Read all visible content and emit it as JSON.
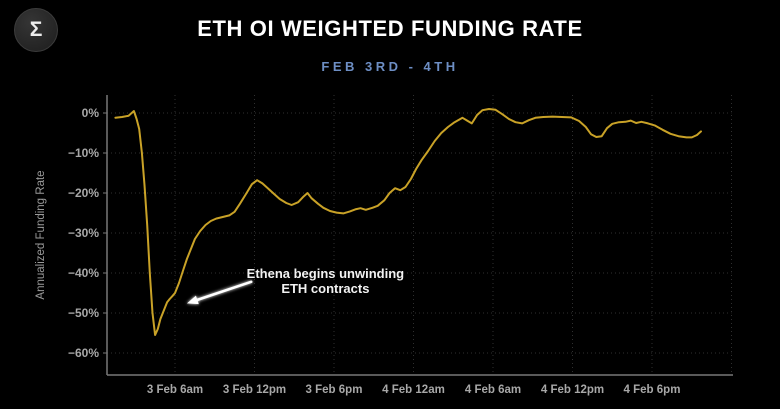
{
  "header": {
    "title": "ETH OI WEIGHTED FUNDING RATE",
    "subtitle": "FEB 3RD - 4TH",
    "logo_glyph": "Σ"
  },
  "colors": {
    "background": "#000000",
    "title_text": "#ffffff",
    "subtitle_text": "#6d8ec4",
    "line": "#c9a227",
    "grid": "#2f2f2f",
    "axis": "#787878",
    "tick_text": "#a8a8a8",
    "axis_title_text": "#9a9a9a",
    "annotation_text": "#f2f2f2",
    "arrow": "#ffffff"
  },
  "chart_data": {
    "type": "line",
    "title": "ETH OI WEIGHTED FUNDING RATE",
    "subtitle": "FEB 3RD - 4TH",
    "xlabel": "",
    "ylabel": "Annualized Funding Rate",
    "ylim": [
      -65,
      5
    ],
    "y_unit": "%",
    "grid": "dotted",
    "legend": "none",
    "y_ticks": [
      {
        "value": 0,
        "label": "0%"
      },
      {
        "value": -10,
        "label": "−10%"
      },
      {
        "value": -20,
        "label": "−20%"
      },
      {
        "value": -30,
        "label": "−30%"
      },
      {
        "value": -40,
        "label": "−40%"
      },
      {
        "value": -50,
        "label": "−50%"
      },
      {
        "value": -60,
        "label": "−60%"
      }
    ],
    "x_ticks": [
      {
        "hour": 6,
        "label": "3 Feb 6am"
      },
      {
        "hour": 12,
        "label": "3 Feb 12pm"
      },
      {
        "hour": 18,
        "label": "3 Feb 6pm"
      },
      {
        "hour": 24,
        "label": "4 Feb 12am"
      },
      {
        "hour": 30,
        "label": "4 Feb 6am"
      },
      {
        "hour": 36,
        "label": "4 Feb 12pm"
      },
      {
        "hour": 42,
        "label": "4 Feb 6pm"
      },
      {
        "hour": 48,
        "label": ""
      }
    ],
    "x_axis_note": "hours measured from 3 Feb 12am",
    "series": [
      {
        "name": "ETH OI weighted funding rate (annualized %)",
        "color": "#c9a227",
        "points": [
          [
            1.5,
            -1.2
          ],
          [
            2.0,
            -1.0
          ],
          [
            2.5,
            -0.7
          ],
          [
            2.9,
            0.5
          ],
          [
            3.1,
            -1.5
          ],
          [
            3.3,
            -4
          ],
          [
            3.5,
            -10
          ],
          [
            3.7,
            -18
          ],
          [
            3.9,
            -28
          ],
          [
            4.1,
            -40
          ],
          [
            4.3,
            -50
          ],
          [
            4.5,
            -55.5
          ],
          [
            4.7,
            -54
          ],
          [
            4.9,
            -51.5
          ],
          [
            5.2,
            -49
          ],
          [
            5.4,
            -47.3
          ],
          [
            5.6,
            -46.5
          ],
          [
            5.8,
            -45.8
          ],
          [
            6.0,
            -45
          ],
          [
            6.3,
            -42.5
          ],
          [
            6.6,
            -39.5
          ],
          [
            6.9,
            -36.5
          ],
          [
            7.2,
            -34
          ],
          [
            7.5,
            -31.5
          ],
          [
            7.9,
            -29.5
          ],
          [
            8.3,
            -28
          ],
          [
            8.7,
            -27
          ],
          [
            9.1,
            -26.4
          ],
          [
            9.6,
            -26
          ],
          [
            10.1,
            -25.6
          ],
          [
            10.5,
            -24.7
          ],
          [
            10.9,
            -22.7
          ],
          [
            11.4,
            -20
          ],
          [
            11.8,
            -17.8
          ],
          [
            12.2,
            -16.8
          ],
          [
            12.6,
            -17.6
          ],
          [
            13.0,
            -18.8
          ],
          [
            13.5,
            -20.3
          ],
          [
            13.9,
            -21.5
          ],
          [
            14.4,
            -22.5
          ],
          [
            14.8,
            -23
          ],
          [
            15.3,
            -22.3
          ],
          [
            15.7,
            -20.9
          ],
          [
            16.0,
            -20
          ],
          [
            16.3,
            -21.3
          ],
          [
            16.8,
            -22.7
          ],
          [
            17.2,
            -23.7
          ],
          [
            17.7,
            -24.5
          ],
          [
            18.2,
            -24.9
          ],
          [
            18.7,
            -25.1
          ],
          [
            19.2,
            -24.6
          ],
          [
            19.6,
            -24.1
          ],
          [
            20.0,
            -23.8
          ],
          [
            20.4,
            -24.2
          ],
          [
            20.9,
            -23.7
          ],
          [
            21.3,
            -23.2
          ],
          [
            21.8,
            -21.8
          ],
          [
            22.2,
            -20
          ],
          [
            22.6,
            -18.8
          ],
          [
            23.0,
            -19.3
          ],
          [
            23.4,
            -18.5
          ],
          [
            23.8,
            -16.5
          ],
          [
            24.2,
            -14
          ],
          [
            24.6,
            -11.8
          ],
          [
            25.1,
            -9.5
          ],
          [
            25.6,
            -7
          ],
          [
            26.1,
            -5
          ],
          [
            26.6,
            -3.5
          ],
          [
            27.1,
            -2.3
          ],
          [
            27.7,
            -1.2
          ],
          [
            28.1,
            -2
          ],
          [
            28.4,
            -2.6
          ],
          [
            28.8,
            -0.5
          ],
          [
            29.2,
            0.7
          ],
          [
            29.7,
            1.0
          ],
          [
            30.2,
            0.8
          ],
          [
            30.7,
            -0.3
          ],
          [
            31.2,
            -1.5
          ],
          [
            31.7,
            -2.3
          ],
          [
            32.2,
            -2.6
          ],
          [
            32.7,
            -1.8
          ],
          [
            33.2,
            -1.2
          ],
          [
            33.8,
            -1.0
          ],
          [
            34.5,
            -0.9
          ],
          [
            35.2,
            -1.0
          ],
          [
            35.9,
            -1.1
          ],
          [
            36.5,
            -2.0
          ],
          [
            37.0,
            -3.5
          ],
          [
            37.4,
            -5.3
          ],
          [
            37.8,
            -6.0
          ],
          [
            38.2,
            -5.8
          ],
          [
            38.6,
            -3.8
          ],
          [
            39.0,
            -2.7
          ],
          [
            39.5,
            -2.3
          ],
          [
            40.0,
            -2.2
          ],
          [
            40.4,
            -1.9
          ],
          [
            40.8,
            -2.5
          ],
          [
            41.2,
            -2.2
          ],
          [
            41.7,
            -2.6
          ],
          [
            42.2,
            -3.1
          ],
          [
            42.8,
            -4.2
          ],
          [
            43.4,
            -5.2
          ],
          [
            44.0,
            -5.8
          ],
          [
            44.6,
            -6.1
          ],
          [
            45.0,
            -6.1
          ],
          [
            45.4,
            -5.5
          ],
          [
            45.7,
            -4.6
          ]
        ]
      }
    ],
    "annotation": {
      "lines": [
        "Ethena begins unwinding",
        "ETH contracts"
      ],
      "text_anchor": {
        "hour": 17.35,
        "value": -41.3
      },
      "arrow_from": {
        "hour": 11.75,
        "value": -42.2
      },
      "arrow_to": {
        "hour": 6.9,
        "value": -47.6
      }
    }
  }
}
